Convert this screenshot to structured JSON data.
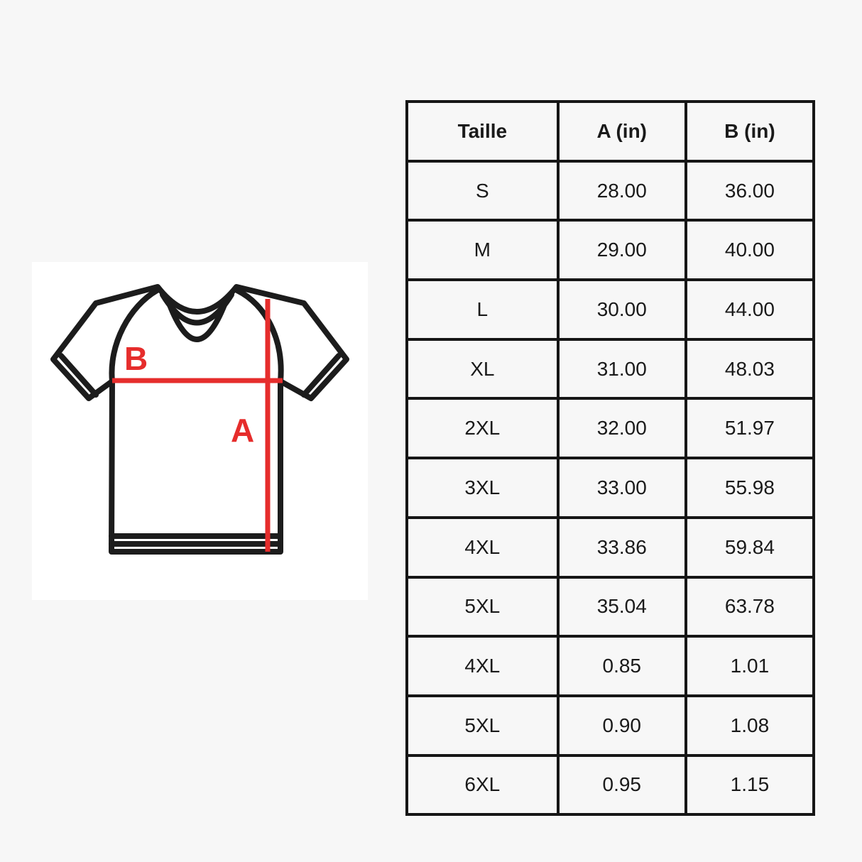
{
  "page": {
    "background_color": "#f7f7f7",
    "panel_background": "#ffffff"
  },
  "diagram": {
    "name": "t-shirt measurement diagram",
    "label_a": "A",
    "label_b": "B",
    "line_color": "#e62d2c",
    "outline_color": "#1c1c1c"
  },
  "chart_data": {
    "type": "table",
    "title": "",
    "columns": [
      "Taille",
      "A (in)",
      "B (in)"
    ],
    "rows": [
      [
        "S",
        "28.00",
        "36.00"
      ],
      [
        "M",
        "29.00",
        "40.00"
      ],
      [
        "L",
        "30.00",
        "44.00"
      ],
      [
        "XL",
        "31.00",
        "48.03"
      ],
      [
        "2XL",
        "32.00",
        "51.97"
      ],
      [
        "3XL",
        "33.00",
        "55.98"
      ],
      [
        "4XL",
        "33.86",
        "59.84"
      ],
      [
        "5XL",
        "35.04",
        "63.78"
      ],
      [
        "4XL",
        "0.85",
        "1.01"
      ],
      [
        "5XL",
        "0.90",
        "1.08"
      ],
      [
        "6XL",
        "0.95",
        "1.15"
      ]
    ]
  }
}
